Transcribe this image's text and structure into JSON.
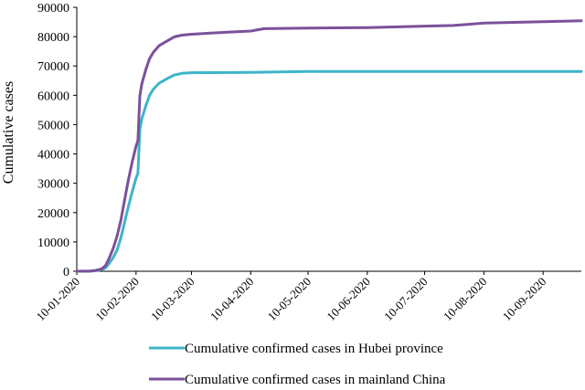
{
  "chart_data": {
    "type": "line",
    "ylabel": "Cumulative cases",
    "xlabel": "",
    "ylim": [
      0,
      90000
    ],
    "y_ticks": [
      "0",
      "10000",
      "20000",
      "30000",
      "40000",
      "50000",
      "60000",
      "70000",
      "80000",
      "90000"
    ],
    "y_tick_values": [
      0,
      10000,
      20000,
      30000,
      40000,
      50000,
      60000,
      70000,
      80000,
      90000
    ],
    "x_range": [
      "2020-01-10",
      "2020-09-30"
    ],
    "x_ticks": [
      {
        "label": "10-01-2020",
        "date": "2020-01-10"
      },
      {
        "label": "10-02-2020",
        "date": "2020-02-10"
      },
      {
        "label": "10-03-2020",
        "date": "2020-03-10"
      },
      {
        "label": "10-04-2020",
        "date": "2020-04-10"
      },
      {
        "label": "10-05-2020",
        "date": "2020-05-10"
      },
      {
        "label": "10-06-2020",
        "date": "2020-06-10"
      },
      {
        "label": "10-07-2020",
        "date": "2020-07-10"
      },
      {
        "label": "10-08-2020",
        "date": "2020-08-10"
      },
      {
        "label": "10-09-2020",
        "date": "2020-09-10"
      }
    ],
    "grid": false,
    "legend_position": "bottom",
    "series": [
      {
        "name": "Cumulative confirmed cases in Hubei province",
        "color": "#3db5c8",
        "points": [
          [
            "2020-01-10",
            0
          ],
          [
            "2020-01-17",
            0
          ],
          [
            "2020-01-20",
            200
          ],
          [
            "2020-01-23",
            600
          ],
          [
            "2020-01-25",
            1100
          ],
          [
            "2020-01-27",
            2700
          ],
          [
            "2020-01-29",
            4600
          ],
          [
            "2020-01-31",
            7100
          ],
          [
            "2020-02-02",
            11200
          ],
          [
            "2020-02-04",
            16700
          ],
          [
            "2020-02-06",
            22100
          ],
          [
            "2020-02-08",
            27100
          ],
          [
            "2020-02-10",
            31700
          ],
          [
            "2020-02-11",
            33400
          ],
          [
            "2020-02-12",
            48200
          ],
          [
            "2020-02-13",
            51900
          ],
          [
            "2020-02-15",
            56200
          ],
          [
            "2020-02-17",
            59900
          ],
          [
            "2020-02-19",
            62000
          ],
          [
            "2020-02-22",
            64100
          ],
          [
            "2020-02-26",
            65600
          ],
          [
            "2020-03-01",
            66900
          ],
          [
            "2020-03-05",
            67500
          ],
          [
            "2020-03-10",
            67700
          ],
          [
            "2020-04-10",
            67800
          ],
          [
            "2020-05-10",
            68100
          ],
          [
            "2020-06-10",
            68100
          ],
          [
            "2020-07-10",
            68100
          ],
          [
            "2020-08-10",
            68100
          ],
          [
            "2020-09-10",
            68100
          ],
          [
            "2020-09-30",
            68100
          ]
        ]
      },
      {
        "name": "Cumulative confirmed cases in mainland China",
        "color": "#7b519c",
        "points": [
          [
            "2020-01-10",
            0
          ],
          [
            "2020-01-17",
            100
          ],
          [
            "2020-01-20",
            300
          ],
          [
            "2020-01-23",
            800
          ],
          [
            "2020-01-25",
            1900
          ],
          [
            "2020-01-27",
            4500
          ],
          [
            "2020-01-29",
            7700
          ],
          [
            "2020-01-31",
            11800
          ],
          [
            "2020-02-02",
            17200
          ],
          [
            "2020-02-04",
            24300
          ],
          [
            "2020-02-06",
            31200
          ],
          [
            "2020-02-08",
            37200
          ],
          [
            "2020-02-10",
            42600
          ],
          [
            "2020-02-11",
            44600
          ],
          [
            "2020-02-12",
            59800
          ],
          [
            "2020-02-13",
            63800
          ],
          [
            "2020-02-15",
            68500
          ],
          [
            "2020-02-17",
            72400
          ],
          [
            "2020-02-19",
            74600
          ],
          [
            "2020-02-22",
            76900
          ],
          [
            "2020-02-26",
            78400
          ],
          [
            "2020-03-01",
            79900
          ],
          [
            "2020-03-05",
            80500
          ],
          [
            "2020-03-10",
            80800
          ],
          [
            "2020-03-20",
            81200
          ],
          [
            "2020-03-31",
            81600
          ],
          [
            "2020-04-10",
            81900
          ],
          [
            "2020-04-17",
            82700
          ],
          [
            "2020-05-10",
            82900
          ],
          [
            "2020-06-10",
            83100
          ],
          [
            "2020-07-10",
            83600
          ],
          [
            "2020-07-25",
            83800
          ],
          [
            "2020-08-10",
            84600
          ],
          [
            "2020-09-10",
            85100
          ],
          [
            "2020-09-30",
            85400
          ]
        ]
      }
    ]
  }
}
